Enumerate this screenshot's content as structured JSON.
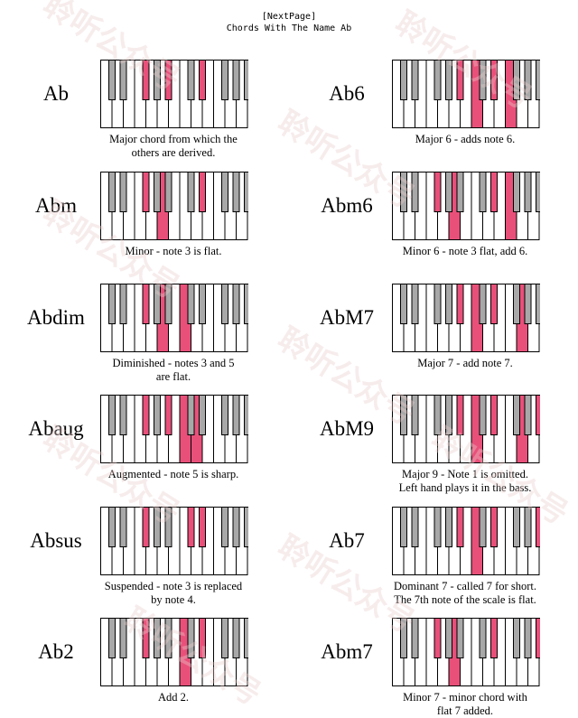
{
  "header": {
    "next_page": "[NextPage]",
    "title": "Chords With The Name Ab"
  },
  "colors": {
    "highlight": "#e8507a",
    "black_key": "#a8a8a8",
    "white_key": "#ffffff",
    "line": "#000000"
  },
  "watermark": "聆听公众号",
  "chords": [
    {
      "name": "Ab",
      "desc": [
        "Major chord from which the",
        "others are derived."
      ],
      "hl_white": [],
      "hl_black": [
        2,
        4,
        6
      ]
    },
    {
      "name": "Ab6",
      "desc": [
        "Major 6 - adds note 6."
      ],
      "hl_white": [
        7,
        10
      ],
      "hl_black": [
        4,
        6
      ]
    },
    {
      "name": "Abm",
      "desc": [
        "Minor - note 3 is flat."
      ],
      "hl_white": [
        5
      ],
      "hl_black": [
        2,
        6
      ]
    },
    {
      "name": "Abm6",
      "desc": [
        "Minor 6 - note 3 flat, add 6."
      ],
      "hl_white": [
        5,
        10
      ],
      "hl_black": [
        2,
        6
      ]
    },
    {
      "name": "Abdim",
      "desc": [
        "Diminished - notes 3 and 5",
        "are flat."
      ],
      "hl_white": [
        5,
        7
      ],
      "hl_black": [
        2
      ]
    },
    {
      "name": "AbM7",
      "desc": [
        "Major 7 - add note 7."
      ],
      "hl_white": [
        7,
        11
      ],
      "hl_black": [
        4,
        6
      ]
    },
    {
      "name": "Abaug",
      "desc": [
        "Augmented - note 5 is sharp."
      ],
      "hl_white": [
        7,
        8
      ],
      "hl_black": [
        2,
        4
      ]
    },
    {
      "name": "AbM9",
      "desc": [
        "Major 9 - Note 1 is omitted.",
        "Left hand plays it in the bass."
      ],
      "hl_white": [
        7,
        11
      ],
      "hl_black": [
        4,
        6,
        9
      ]
    },
    {
      "name": "Absus",
      "desc": [
        "Suspended - note 3 is replaced",
        "by note 4."
      ],
      "hl_white": [],
      "hl_black": [
        2,
        5,
        6
      ]
    },
    {
      "name": "Ab7",
      "desc": [
        "Dominant 7 - called 7 for short.",
        "The 7th note of the scale is flat."
      ],
      "hl_white": [
        7
      ],
      "hl_black": [
        4,
        6,
        9
      ]
    },
    {
      "name": "Ab2",
      "desc": [
        "Add 2."
      ],
      "hl_white": [
        7
      ],
      "hl_black": [
        2,
        6
      ]
    },
    {
      "name": "Abm7",
      "desc": [
        "Minor 7 - minor chord with",
        "flat 7 added."
      ],
      "hl_white": [
        5
      ],
      "hl_black": [
        2,
        6,
        9
      ]
    }
  ]
}
